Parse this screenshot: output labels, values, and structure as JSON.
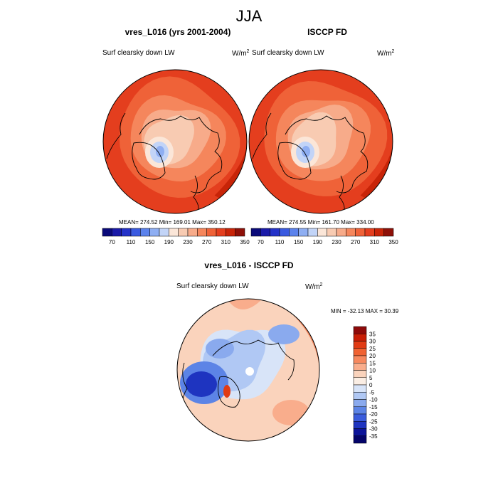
{
  "figure": {
    "title": "JJA",
    "panels": [
      {
        "title": "vres_L016 (yrs 2001-2004)",
        "left_label": "Surf clearsky down LW",
        "units": "W/m",
        "units_sup": "2",
        "stats": "MEAN= 274.52  Min= 169.01  Max= 350.12"
      },
      {
        "title": "ISCCP FD",
        "left_label": "Surf clearsky down LW",
        "units": "W/m",
        "units_sup": "2",
        "stats": "MEAN= 274.55  Min= 161.70  Max= 334.00"
      },
      {
        "title": "vres_L016 - ISCCP FD",
        "left_label": "Surf clearsky down LW",
        "units": "W/m",
        "units_sup": "2",
        "stats": "MIN = -32.13 MAX =  30.39"
      }
    ]
  },
  "chart_data": [
    {
      "type": "heatmap",
      "projection": "polar-stereographic-north",
      "title": "vres_L016 (yrs 2001-2004)",
      "variable": "Surf clearsky down LW",
      "units": "W/m2",
      "mean": 274.52,
      "min": 169.01,
      "max": 350.12,
      "colorbar_levels": [
        70,
        90,
        110,
        130,
        150,
        170,
        190,
        210,
        230,
        250,
        270,
        290,
        310,
        330,
        350
      ],
      "colorbar_ticklabels": [
        "70",
        "110",
        "150",
        "190",
        "230",
        "270",
        "310",
        "350"
      ],
      "colorbar_colors": [
        "#0a0a7a",
        "#1a1aa8",
        "#2432c8",
        "#3a5ae0",
        "#5b82ec",
        "#8eaef2",
        "#c2d4f7",
        "#fbe6d8",
        "#f8cbb2",
        "#f7ab8a",
        "#f5865c",
        "#ef6238",
        "#e43e1e",
        "#c82408",
        "#8e1008"
      ]
    },
    {
      "type": "heatmap",
      "projection": "polar-stereographic-north",
      "title": "ISCCP FD",
      "variable": "Surf clearsky down LW",
      "units": "W/m2",
      "mean": 274.55,
      "min": 161.7,
      "max": 334.0,
      "colorbar_levels": [
        70,
        90,
        110,
        130,
        150,
        170,
        190,
        210,
        230,
        250,
        270,
        290,
        310,
        330,
        350
      ],
      "colorbar_ticklabels": [
        "70",
        "110",
        "150",
        "190",
        "230",
        "270",
        "310",
        "350"
      ],
      "colorbar_colors": [
        "#0a0a7a",
        "#1a1aa8",
        "#2432c8",
        "#3a5ae0",
        "#5b82ec",
        "#8eaef2",
        "#c2d4f7",
        "#fbe6d8",
        "#f8cbb2",
        "#f7ab8a",
        "#f5865c",
        "#ef6238",
        "#e43e1e",
        "#c82408",
        "#8e1008"
      ]
    },
    {
      "type": "heatmap",
      "projection": "polar-stereographic-north",
      "title": "vres_L016 - ISCCP FD",
      "variable": "Surf clearsky down LW",
      "units": "W/m2",
      "min": -32.13,
      "max": 30.39,
      "colorbar_ticklabels": [
        "35",
        "30",
        "25",
        "20",
        "15",
        "10",
        "5",
        "0",
        "-5",
        "-10",
        "-15",
        "-20",
        "-25",
        "-30",
        "-35"
      ],
      "colorbar_colors": [
        "#8e0a0a",
        "#c81e06",
        "#e13b14",
        "#f06232",
        "#f7885e",
        "#f9ad8c",
        "#fad3bc",
        "#fbeee4",
        "#d8e4f8",
        "#b0c8f4",
        "#8aaaee",
        "#5c84e6",
        "#3a5cdc",
        "#1e34c0",
        "#0c149a",
        "#04046a"
      ]
    }
  ]
}
